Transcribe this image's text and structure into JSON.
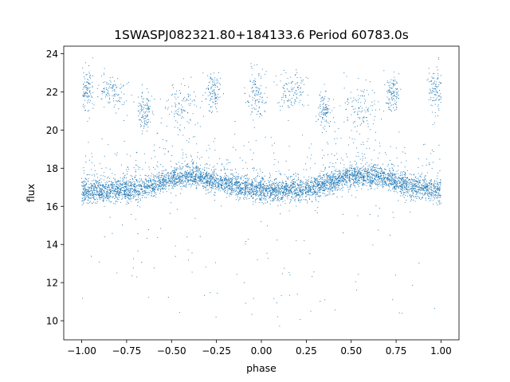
{
  "chart_data": {
    "type": "scatter",
    "title": "1SWASPJ082321.80+184133.6 Period 60783.0s",
    "xlabel": "phase",
    "ylabel": "flux",
    "xlim": [
      -1.1,
      1.1
    ],
    "ylim": [
      9.0,
      24.4
    ],
    "x_ticks": [
      -1.0,
      -0.75,
      -0.5,
      -0.25,
      0.0,
      0.25,
      0.5,
      0.75,
      1.0
    ],
    "x_tick_labels": [
      "−1.00",
      "−0.75",
      "−0.50",
      "−0.25",
      "0.00",
      "0.25",
      "0.50",
      "0.75",
      "1.00"
    ],
    "y_ticks": [
      10,
      12,
      14,
      16,
      18,
      20,
      22,
      24
    ],
    "y_tick_labels": [
      "10",
      "12",
      "14",
      "16",
      "18",
      "20",
      "22",
      "24"
    ],
    "grid": false,
    "legend": "none",
    "marker_color": "#1f77b4",
    "phase_range": [
      -1.0,
      1.0
    ],
    "baseline_flux_curve": {
      "phase": [
        -1.0,
        -0.9,
        -0.75,
        -0.6,
        -0.5,
        -0.4,
        -0.25,
        -0.1,
        0.0,
        0.1,
        0.25,
        0.4,
        0.5,
        0.6,
        0.75,
        0.9,
        1.0
      ],
      "flux": [
        16.8,
        16.8,
        16.85,
        17.1,
        17.45,
        17.6,
        17.3,
        17.0,
        16.85,
        16.8,
        16.9,
        17.3,
        17.55,
        17.6,
        17.3,
        16.95,
        16.85
      ]
    },
    "baseline_scatter": 0.3,
    "upper_clusters": [
      {
        "phase_center": -0.83,
        "phase_width": 0.04,
        "flux_center": 22.0,
        "flux_spread": 0.5
      },
      {
        "phase_center": -0.45,
        "phase_width": 0.05,
        "flux_center": 21.2,
        "flux_spread": 0.6
      },
      {
        "phase_center": -0.97,
        "phase_width": 0.02,
        "flux_center": 22.1,
        "flux_spread": 0.6
      },
      {
        "phase_center": 0.17,
        "phase_width": 0.04,
        "flux_center": 22.0,
        "flux_spread": 0.5
      },
      {
        "phase_center": 0.55,
        "phase_width": 0.05,
        "flux_center": 21.2,
        "flux_spread": 0.6
      },
      {
        "phase_center": -0.03,
        "phase_width": 0.03,
        "flux_center": 21.9,
        "flux_spread": 0.7
      },
      {
        "phase_center": 0.97,
        "phase_width": 0.02,
        "flux_center": 22.1,
        "flux_spread": 0.6
      },
      {
        "phase_center": -0.27,
        "phase_width": 0.02,
        "flux_center": 21.9,
        "flux_spread": 0.5
      },
      {
        "phase_center": 0.73,
        "phase_width": 0.02,
        "flux_center": 21.9,
        "flux_spread": 0.5
      },
      {
        "phase_center": -0.65,
        "phase_width": 0.02,
        "flux_center": 21.0,
        "flux_spread": 0.5
      },
      {
        "phase_center": 0.35,
        "phase_width": 0.02,
        "flux_center": 21.0,
        "flux_spread": 0.5
      }
    ],
    "outlier_flux_range": [
      9.7,
      23.3
    ]
  }
}
